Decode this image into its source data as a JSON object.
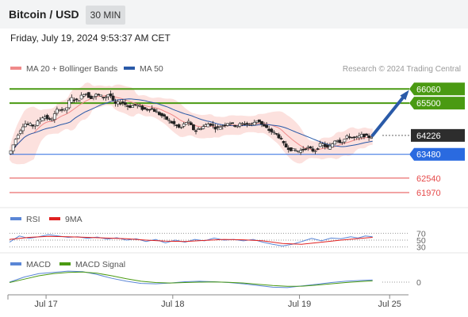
{
  "header": {
    "title": "Bitcoin / USD",
    "timeframe": "30 MIN",
    "datetime": "Friday, July 19, 2024 9:53:37 AM CET"
  },
  "chart_data": {
    "type": "candlestick",
    "legend": [
      {
        "name": "MA 20 + Bollinger Bands",
        "color": "#f08a8a"
      },
      {
        "name": "MA 50",
        "color": "#2a5aa8"
      }
    ],
    "watermark": "Research © 2024 Trading Central",
    "last_price": 64226,
    "ylim": [
      61500,
      66600
    ],
    "levels": [
      {
        "label": "66060",
        "value": 66060,
        "color": "#4a9a12",
        "kind": "resistance"
      },
      {
        "label": "65500",
        "value": 65500,
        "color": "#4a9a12",
        "kind": "resistance"
      },
      {
        "label": "64226",
        "value": 64226,
        "color": "#333333",
        "kind": "last"
      },
      {
        "label": "63480",
        "value": 63480,
        "color": "#2a6ae0",
        "kind": "pivot"
      },
      {
        "label": "62540",
        "value": 62540,
        "color": "#e64a4a",
        "kind": "support"
      },
      {
        "label": "61970",
        "value": 61970,
        "color": "#e64a4a",
        "kind": "support"
      }
    ],
    "close_path": [
      [
        0,
        63500
      ],
      [
        6,
        64200
      ],
      [
        12,
        64700
      ],
      [
        20,
        64600
      ],
      [
        28,
        65000
      ],
      [
        34,
        64800
      ],
      [
        40,
        65300
      ],
      [
        46,
        65200
      ],
      [
        50,
        65700
      ],
      [
        56,
        65600
      ],
      [
        62,
        65950
      ],
      [
        66,
        65700
      ],
      [
        72,
        65850
      ],
      [
        78,
        65700
      ],
      [
        82,
        65900
      ],
      [
        86,
        65450
      ],
      [
        92,
        65550
      ],
      [
        98,
        65350
      ],
      [
        104,
        65450
      ],
      [
        110,
        65250
      ],
      [
        116,
        65300
      ],
      [
        122,
        65100
      ],
      [
        128,
        64900
      ],
      [
        134,
        64700
      ],
      [
        140,
        64500
      ],
      [
        146,
        64800
      ],
      [
        152,
        64400
      ],
      [
        158,
        64550
      ],
      [
        164,
        64700
      ],
      [
        170,
        64500
      ],
      [
        176,
        64650
      ],
      [
        180,
        64750
      ],
      [
        186,
        64600
      ],
      [
        192,
        64700
      ],
      [
        198,
        64650
      ],
      [
        204,
        64850
      ],
      [
        208,
        64600
      ],
      [
        214,
        64400
      ],
      [
        220,
        64250
      ],
      [
        226,
        63800
      ],
      [
        232,
        63650
      ],
      [
        238,
        63600
      ],
      [
        244,
        63750
      ],
      [
        250,
        63600
      ],
      [
        256,
        63900
      ],
      [
        262,
        63700
      ],
      [
        268,
        64100
      ],
      [
        272,
        63950
      ],
      [
        278,
        64200
      ],
      [
        284,
        64100
      ],
      [
        290,
        64250
      ],
      [
        294,
        64150
      ],
      [
        298,
        64200
      ]
    ],
    "prediction_arrow": {
      "from": [
        298,
        64226
      ],
      "to": [
        306,
        66060
      ]
    },
    "x_ticks": [
      {
        "label": "Jul 17",
        "x": 30
      },
      {
        "label": "Jul 18",
        "x": 134
      },
      {
        "label": "Jul 19",
        "x": 238
      },
      {
        "label": "Jul 25",
        "x": 312
      }
    ],
    "rsi": {
      "legend": [
        {
          "name": "RSI",
          "color": "#5a86d6"
        },
        {
          "name": "9MA",
          "color": "#e02020"
        }
      ],
      "ylim": [
        20,
        80
      ],
      "levels": [
        {
          "label": "70",
          "value": 70
        },
        {
          "label": "50",
          "value": 50
        },
        {
          "label": "30",
          "value": 30
        }
      ],
      "rsi": [
        [
          0,
          44
        ],
        [
          8,
          62
        ],
        [
          16,
          55
        ],
        [
          24,
          60
        ],
        [
          32,
          66
        ],
        [
          40,
          62
        ],
        [
          48,
          58
        ],
        [
          56,
          60
        ],
        [
          64,
          55
        ],
        [
          72,
          59
        ],
        [
          80,
          53
        ],
        [
          88,
          57
        ],
        [
          96,
          50
        ],
        [
          104,
          54
        ],
        [
          112,
          46
        ],
        [
          120,
          52
        ],
        [
          128,
          42
        ],
        [
          136,
          50
        ],
        [
          144,
          44
        ],
        [
          152,
          52
        ],
        [
          160,
          48
        ],
        [
          168,
          56
        ],
        [
          176,
          50
        ],
        [
          184,
          52
        ],
        [
          192,
          48
        ],
        [
          200,
          52
        ],
        [
          208,
          44
        ],
        [
          216,
          38
        ],
        [
          224,
          33
        ],
        [
          232,
          38
        ],
        [
          240,
          46
        ],
        [
          248,
          55
        ],
        [
          256,
          48
        ],
        [
          264,
          56
        ],
        [
          272,
          54
        ],
        [
          280,
          60
        ],
        [
          286,
          56
        ],
        [
          292,
          62
        ],
        [
          298,
          60
        ]
      ],
      "ma9": [
        [
          0,
          52
        ],
        [
          16,
          58
        ],
        [
          32,
          61
        ],
        [
          48,
          60
        ],
        [
          64,
          58
        ],
        [
          80,
          56
        ],
        [
          96,
          54
        ],
        [
          112,
          50
        ],
        [
          128,
          47
        ],
        [
          144,
          46
        ],
        [
          160,
          49
        ],
        [
          176,
          52
        ],
        [
          192,
          51
        ],
        [
          208,
          48
        ],
        [
          224,
          40
        ],
        [
          240,
          38
        ],
        [
          256,
          44
        ],
        [
          272,
          50
        ],
        [
          288,
          55
        ],
        [
          298,
          58
        ]
      ]
    },
    "macd": {
      "legend": [
        {
          "name": "MACD",
          "color": "#5a86d6"
        },
        {
          "name": "MACD Signal",
          "color": "#4a9a12"
        }
      ],
      "ylim": [
        -300,
        300
      ],
      "zero_label": "0",
      "macd": [
        [
          0,
          0
        ],
        [
          12,
          120
        ],
        [
          24,
          200
        ],
        [
          36,
          230
        ],
        [
          48,
          260
        ],
        [
          60,
          250
        ],
        [
          72,
          180
        ],
        [
          84,
          90
        ],
        [
          96,
          20
        ],
        [
          108,
          -30
        ],
        [
          120,
          -40
        ],
        [
          132,
          -20
        ],
        [
          144,
          10
        ],
        [
          156,
          20
        ],
        [
          168,
          10
        ],
        [
          180,
          -10
        ],
        [
          192,
          -40
        ],
        [
          204,
          -80
        ],
        [
          216,
          -120
        ],
        [
          228,
          -130
        ],
        [
          240,
          -90
        ],
        [
          252,
          -50
        ],
        [
          264,
          -10
        ],
        [
          276,
          20
        ],
        [
          288,
          40
        ],
        [
          298,
          50
        ]
      ],
      "signal": [
        [
          0,
          -10
        ],
        [
          12,
          70
        ],
        [
          24,
          150
        ],
        [
          36,
          200
        ],
        [
          48,
          230
        ],
        [
          60,
          240
        ],
        [
          72,
          210
        ],
        [
          84,
          150
        ],
        [
          96,
          80
        ],
        [
          108,
          20
        ],
        [
          120,
          -10
        ],
        [
          132,
          -20
        ],
        [
          144,
          -10
        ],
        [
          156,
          0
        ],
        [
          168,
          5
        ],
        [
          180,
          -5
        ],
        [
          192,
          -20
        ],
        [
          204,
          -50
        ],
        [
          216,
          -80
        ],
        [
          228,
          -100
        ],
        [
          240,
          -95
        ],
        [
          252,
          -70
        ],
        [
          264,
          -40
        ],
        [
          276,
          -10
        ],
        [
          288,
          15
        ],
        [
          298,
          30
        ]
      ]
    }
  }
}
